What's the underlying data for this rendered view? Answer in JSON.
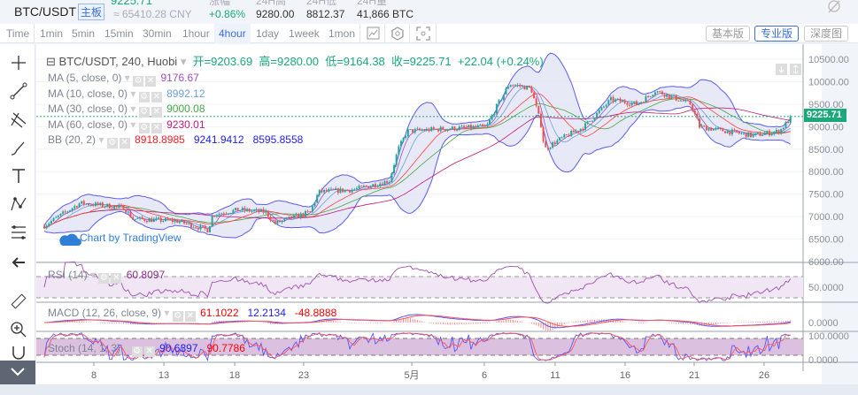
{
  "header": {
    "pair": "BTC/USDT",
    "board": "主板",
    "price": "9225.71",
    "cny": "≈ 65410.28 CNY",
    "stats": [
      {
        "label": "涨幅",
        "value": "+0.86%"
      },
      {
        "label": "24H高",
        "value": "9280.00"
      },
      {
        "label": "24H低",
        "value": "8812.37"
      },
      {
        "label": "24H量",
        "value": "41,866 BTC"
      }
    ]
  },
  "toolbar": {
    "intervals": [
      "Time",
      "1min",
      "5min",
      "15min",
      "30min",
      "1hour",
      "4hour",
      "1day",
      "1week",
      "1mon"
    ],
    "active": "4hour",
    "views": [
      "基本版",
      "专业版",
      "深度图"
    ],
    "active_view": "专业版"
  },
  "legend": {
    "symbol": "BTC/USDT, 240, Huobi",
    "ohlc": "开=9203.69  高=9280.00  低=9164.38  收=9225.71",
    "change": "+22.04 (+0.24%)",
    "ma": [
      {
        "label": "MA (5, close, 0)",
        "value": "9176.67",
        "color": "#9c4fc4"
      },
      {
        "label": "MA (10, close, 0)",
        "value": "8992.12",
        "color": "#6c9fd8"
      },
      {
        "label": "MA (30, close, 0)",
        "value": "9000.08",
        "color": "#45a845"
      },
      {
        "label": "MA (60, close, 0)",
        "value": "9230.01",
        "color": "#c2187a"
      }
    ],
    "bb": {
      "label": "BB (20, 2)",
      "values": [
        "8918.8985",
        "9241.9412",
        "8595.8558"
      ],
      "colors": [
        "#ff2020",
        "#2020ee",
        "#2020ee"
      ]
    },
    "rsi": {
      "label": "RSI (14)",
      "value": "60.8097"
    },
    "macd": {
      "label": "MACD (12, 26, close, 9)",
      "values": [
        "61.1022",
        "12.2134",
        "-48.8888"
      ]
    },
    "stoch": {
      "label": "Stoch (14, 1, 3)",
      "values": [
        "90.6397",
        "90.7786"
      ]
    }
  },
  "watermark": "Chart by TradingView",
  "chart_data": {
    "type": "candlestick",
    "ylim": [
      6000,
      10500
    ],
    "y_ticks": [
      "10500.00",
      "10000.00",
      "9500.00",
      "9000.00",
      "8500.00",
      "8000.00",
      "7500.00",
      "7000.00",
      "6500.00",
      "6000.00"
    ],
    "last_price": "9225.71",
    "x_ticks": [
      "8",
      "13",
      "18",
      "23",
      "5月",
      "6",
      "11",
      "16",
      "21",
      "26"
    ],
    "pane_ticks": {
      "rsi": "50.0000",
      "macd": "0.0000",
      "stoch": [
        "100.0000",
        "0.0000"
      ]
    },
    "close_path": [
      [
        "04-04 11",
        6800
      ],
      [
        "04-07 00",
        7300
      ],
      [
        "04-10 04",
        7200
      ],
      [
        "04-10 19",
        6950
      ],
      [
        "04-13 23",
        6900
      ],
      [
        "04-16 04",
        6700
      ],
      [
        "04-16 12",
        7050
      ],
      [
        "04-18 09",
        7150
      ],
      [
        "04-20 07",
        7100
      ],
      [
        "04-20 22",
        6850
      ],
      [
        "04-23 11",
        7100
      ],
      [
        "04-24 02",
        7550
      ],
      [
        "04-26 14",
        7600
      ],
      [
        "04-29 03",
        7800
      ],
      [
        "04-29 18",
        8500
      ],
      [
        "04-30 10",
        8900
      ],
      [
        "05-02 22",
        8950
      ],
      [
        "05-06 02",
        9000
      ],
      [
        "05-06 17",
        9400
      ],
      [
        "05-07 17",
        9950
      ],
      [
        "05-09 06",
        9850
      ],
      [
        "05-10 00",
        9000
      ],
      [
        "05-10 05",
        8500
      ],
      [
        "05-11 05",
        8700
      ],
      [
        "05-13 01",
        9000
      ],
      [
        "05-14 23",
        9600
      ],
      [
        "05-16 21",
        9500
      ],
      [
        "05-18 03",
        9800
      ],
      [
        "05-20 16",
        9500
      ],
      [
        "05-21 07",
        9000
      ],
      [
        "05-23 05",
        8900
      ],
      [
        "05-25 02",
        8800
      ],
      [
        "05-27 00",
        8900
      ],
      [
        "05-27 22",
        9225
      ]
    ],
    "colors": {
      "up": "#26a69a",
      "down": "#ef5350",
      "bb": "#5b5bf0",
      "bb_fill": "#e2e3f5"
    }
  }
}
